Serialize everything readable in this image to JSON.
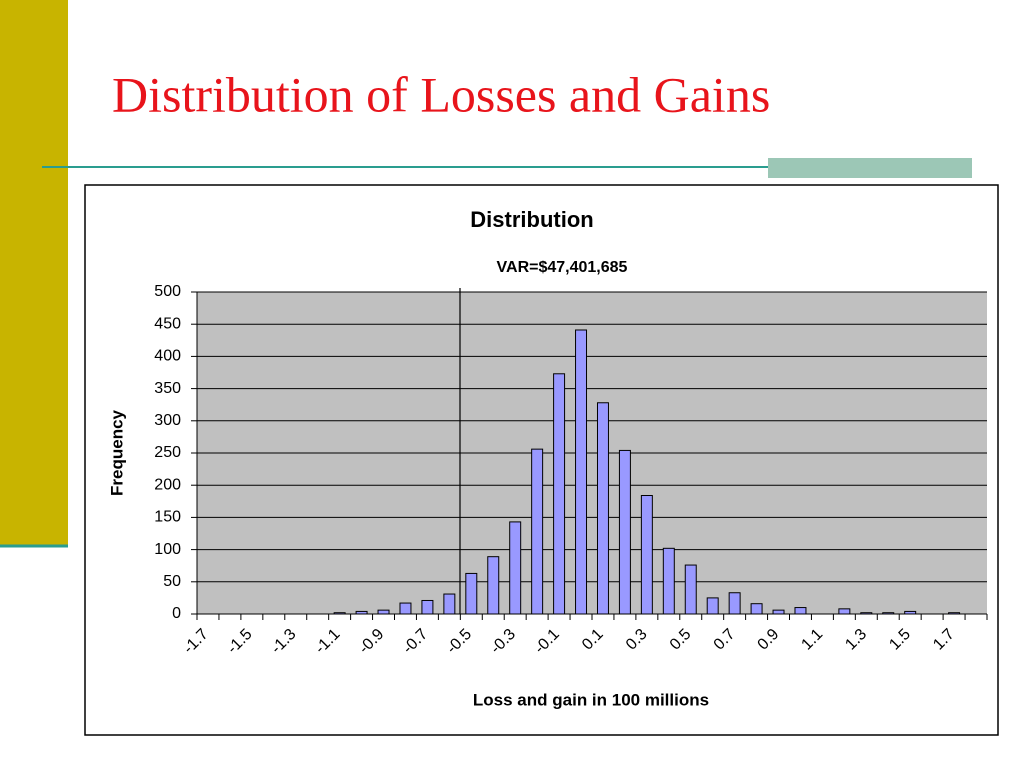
{
  "slide": {
    "title": "Distribution of Losses and Gains"
  },
  "chart_data": {
    "type": "bar",
    "title": "Distribution",
    "annotation": "VAR=$47,401,685",
    "x_label": "Loss and gain in 100 millions",
    "y_label": "Frequency",
    "categories": [
      "-1.7",
      null,
      "-1.5",
      null,
      "-1.3",
      null,
      "-1.1",
      null,
      "-0.9",
      null,
      "-0.7",
      null,
      "-0.5",
      null,
      "-0.3",
      null,
      "-0.1",
      null,
      "0.1",
      null,
      "0.3",
      null,
      "0.5",
      null,
      "0.7",
      null,
      "0.9",
      null,
      "1.1",
      null,
      "1.3",
      null,
      "1.5",
      null,
      "1.7",
      null
    ],
    "values": [
      0,
      0,
      0,
      0,
      0,
      0,
      2,
      4,
      6,
      17,
      21,
      31,
      63,
      89,
      143,
      256,
      373,
      441,
      328,
      254,
      184,
      102,
      76,
      25,
      33,
      16,
      6,
      10,
      0,
      8,
      2,
      2,
      4,
      0,
      2,
      0
    ],
    "color": "#9999ff",
    "ylim": [
      0,
      500
    ],
    "yticks": [
      0,
      50,
      100,
      150,
      200,
      250,
      300,
      350,
      400,
      450,
      500
    ],
    "grid": true
  }
}
